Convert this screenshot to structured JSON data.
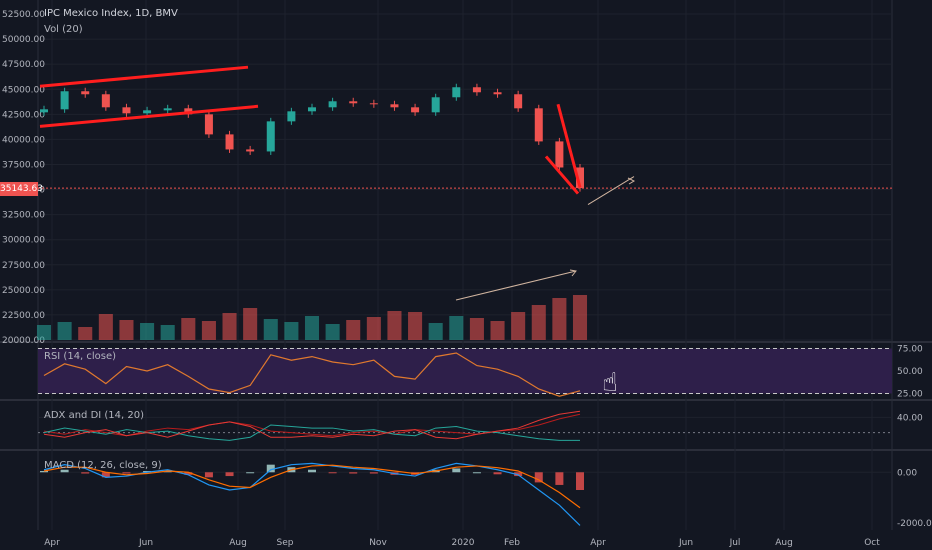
{
  "header": {
    "title": "IPC Mexico Index, 1D, BMV",
    "vol_label": "Vol (20)"
  },
  "last_price": "35143.63",
  "colors": {
    "bg": "#131722",
    "grid": "#1e222d",
    "up": "#26a69a",
    "down": "#ef5350",
    "trend": "#ff1e1e",
    "rsi_fill": "#2e1f4a",
    "rsi_line": "#e0792e",
    "adx_line": "#e57373",
    "plus_di": "#26a69a",
    "minus_di": "#e53935",
    "macd_line": "#2196f3",
    "signal_line": "#ff6d00"
  },
  "chart_data": [
    {
      "type": "line",
      "name": "price",
      "y_ticks": [
        "52500.00",
        "50000.00",
        "47500.00",
        "45000.00",
        "42500.00",
        "40000.00",
        "37500.00",
        "35000.00",
        "32500.00",
        "30000.00",
        "27500.00",
        "25000.00",
        "22500.00",
        "20000.00"
      ],
      "ylim": [
        20000,
        53500
      ],
      "x_ticks": [
        "Apr",
        "Jun",
        "Aug",
        "Sep",
        "Nov",
        "2020",
        "Feb",
        "Apr",
        "Jun",
        "Jul",
        "Aug",
        "Oct"
      ],
      "x": [
        "2019-04-01",
        "2019-04-15",
        "2019-05-01",
        "2019-05-15",
        "2019-06-01",
        "2019-06-15",
        "2019-07-01",
        "2019-07-15",
        "2019-08-01",
        "2019-08-15",
        "2019-08-25",
        "2019-09-05",
        "2019-09-20",
        "2019-10-05",
        "2019-10-20",
        "2019-11-05",
        "2019-11-20",
        "2019-12-05",
        "2019-12-20",
        "2020-01-05",
        "2020-01-20",
        "2020-02-01",
        "2020-02-15",
        "2020-02-25",
        "2020-03-05",
        "2020-03-12",
        "2020-03-20"
      ],
      "values": [
        43000,
        44800,
        44500,
        43200,
        42600,
        42900,
        43100,
        42500,
        40500,
        39000,
        38800,
        41800,
        42800,
        43200,
        43800,
        43600,
        43500,
        43200,
        42700,
        44200,
        45200,
        44700,
        44500,
        43100,
        39800,
        37200,
        35144
      ]
    },
    {
      "type": "bar",
      "name": "volume",
      "ylim": [
        20000,
        30000
      ],
      "values": [
        21500,
        21800,
        21300,
        22600,
        22000,
        21700,
        21500,
        22200,
        21900,
        22700,
        23200,
        22100,
        21800,
        22400,
        21600,
        22000,
        22300,
        22900,
        22800,
        21700,
        22400,
        22200,
        21900,
        22800,
        23500,
        24200,
        24500
      ]
    },
    {
      "type": "line",
      "name": "RSI (14, close)",
      "y_ticks": [
        "75.00",
        "50.00",
        "25.00"
      ],
      "ylim": [
        20,
        80
      ],
      "values": [
        45,
        58,
        52,
        36,
        55,
        50,
        57,
        44,
        30,
        26,
        34,
        68,
        62,
        66,
        60,
        57,
        62,
        44,
        41,
        66,
        70,
        56,
        52,
        44,
        30,
        22,
        28
      ]
    },
    {
      "type": "line",
      "name": "ADX and DI (14, 20)",
      "y_ticks": [
        "40.00"
      ],
      "ylim": [
        0,
        60
      ],
      "series": [
        {
          "values": [
            22,
            18,
            24,
            20,
            16,
            22,
            26,
            24,
            30,
            34,
            30,
            22,
            20,
            18,
            16,
            20,
            22,
            18,
            24,
            22,
            20,
            18,
            22,
            24,
            30,
            38,
            44
          ]
        },
        {
          "values": [
            20,
            26,
            22,
            18,
            24,
            20,
            22,
            16,
            12,
            10,
            14,
            30,
            28,
            26,
            26,
            22,
            24,
            18,
            16,
            26,
            28,
            22,
            20,
            16,
            12,
            10,
            10
          ]
        },
        {
          "values": [
            18,
            14,
            20,
            24,
            16,
            20,
            14,
            22,
            30,
            34,
            28,
            14,
            14,
            16,
            14,
            18,
            16,
            22,
            24,
            14,
            12,
            18,
            22,
            26,
            36,
            44,
            48
          ]
        }
      ]
    },
    {
      "type": "line",
      "name": "MACD (12, 26, close, 9)",
      "y_ticks": [
        "0.00",
        "-2000.00"
      ],
      "ylim": [
        -2200,
        800
      ],
      "series": [
        {
          "values": [
            100,
            300,
            150,
            -200,
            -150,
            0,
            100,
            -100,
            -500,
            -700,
            -600,
            100,
            300,
            350,
            250,
            150,
            100,
            -50,
            -150,
            150,
            350,
            250,
            100,
            -100,
            -700,
            -1300,
            -2100
          ]
        },
        {
          "values": [
            50,
            200,
            200,
            0,
            -100,
            -50,
            50,
            0,
            -300,
            -550,
            -600,
            -200,
            100,
            250,
            280,
            200,
            150,
            50,
            -50,
            50,
            200,
            250,
            180,
            50,
            -300,
            -800,
            -1400
          ]
        }
      ],
      "hist": [
        50,
        100,
        -50,
        -200,
        -50,
        50,
        50,
        -100,
        -200,
        -150,
        0,
        300,
        200,
        100,
        -30,
        -50,
        -50,
        -100,
        -100,
        100,
        150,
        0,
        -80,
        -150,
        -400,
        -500,
        -700
      ]
    }
  ]
}
